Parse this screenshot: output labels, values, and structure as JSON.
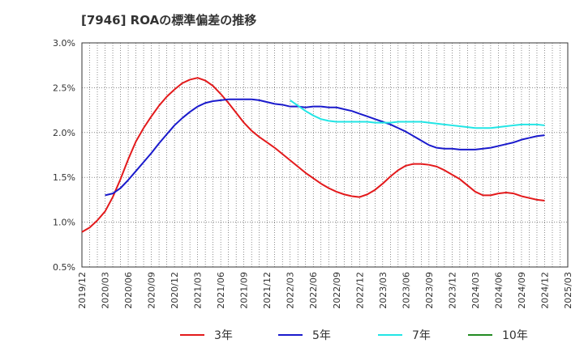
{
  "title": "[7946]  ROAの標準偏差の推移",
  "chart_data": {
    "type": "line",
    "title": "[7946]  ROAの標準偏差の推移",
    "xlabel": "",
    "ylabel": "",
    "ylim": [
      0.5,
      3.0
    ],
    "y_ticks": [
      "0.5%",
      "1.0%",
      "1.5%",
      "2.0%",
      "2.5%",
      "3.0%"
    ],
    "x_ticks": [
      "2019/12",
      "2020/03",
      "2020/06",
      "2020/09",
      "2020/12",
      "2021/03",
      "2021/06",
      "2021/09",
      "2021/12",
      "2022/03",
      "2022/06",
      "2022/09",
      "2022/12",
      "2023/03",
      "2023/06",
      "2023/09",
      "2023/12",
      "2024/03",
      "2024/06",
      "2024/09",
      "2024/12",
      "2025/03"
    ],
    "grid": true,
    "legend_position": "bottom",
    "series": [
      {
        "name": "3年",
        "color": "#e31a1c",
        "points": [
          [
            "2019/12",
            0.89
          ],
          [
            "2020/01",
            0.94
          ],
          [
            "2020/02",
            1.02
          ],
          [
            "2020/03",
            1.12
          ],
          [
            "2020/04",
            1.28
          ],
          [
            "2020/05",
            1.48
          ],
          [
            "2020/06",
            1.7
          ],
          [
            "2020/07",
            1.9
          ],
          [
            "2020/08",
            2.05
          ],
          [
            "2020/09",
            2.18
          ],
          [
            "2020/10",
            2.3
          ],
          [
            "2020/11",
            2.4
          ],
          [
            "2020/12",
            2.48
          ],
          [
            "2021/01",
            2.55
          ],
          [
            "2021/02",
            2.59
          ],
          [
            "2021/03",
            2.61
          ],
          [
            "2021/04",
            2.58
          ],
          [
            "2021/05",
            2.52
          ],
          [
            "2021/06",
            2.43
          ],
          [
            "2021/07",
            2.33
          ],
          [
            "2021/08",
            2.22
          ],
          [
            "2021/09",
            2.11
          ],
          [
            "2021/10",
            2.02
          ],
          [
            "2021/11",
            1.95
          ],
          [
            "2021/12",
            1.89
          ],
          [
            "2022/01",
            1.83
          ],
          [
            "2022/02",
            1.76
          ],
          [
            "2022/03",
            1.69
          ],
          [
            "2022/04",
            1.62
          ],
          [
            "2022/05",
            1.55
          ],
          [
            "2022/06",
            1.49
          ],
          [
            "2022/07",
            1.43
          ],
          [
            "2022/08",
            1.38
          ],
          [
            "2022/09",
            1.34
          ],
          [
            "2022/10",
            1.31
          ],
          [
            "2022/11",
            1.29
          ],
          [
            "2022/12",
            1.28
          ],
          [
            "2023/01",
            1.31
          ],
          [
            "2023/02",
            1.36
          ],
          [
            "2023/03",
            1.43
          ],
          [
            "2023/04",
            1.51
          ],
          [
            "2023/05",
            1.58
          ],
          [
            "2023/06",
            1.63
          ],
          [
            "2023/07",
            1.65
          ],
          [
            "2023/08",
            1.65
          ],
          [
            "2023/09",
            1.64
          ],
          [
            "2023/10",
            1.62
          ],
          [
            "2023/11",
            1.58
          ],
          [
            "2023/12",
            1.53
          ],
          [
            "2024/01",
            1.48
          ],
          [
            "2024/02",
            1.41
          ],
          [
            "2024/03",
            1.34
          ],
          [
            "2024/04",
            1.3
          ],
          [
            "2024/05",
            1.3
          ],
          [
            "2024/06",
            1.32
          ],
          [
            "2024/07",
            1.33
          ],
          [
            "2024/08",
            1.32
          ],
          [
            "2024/09",
            1.29
          ],
          [
            "2024/10",
            1.27
          ],
          [
            "2024/11",
            1.25
          ],
          [
            "2024/12",
            1.24
          ]
        ]
      },
      {
        "name": "5年",
        "color": "#1a1acc",
        "points": [
          [
            "2020/03",
            1.3
          ],
          [
            "2020/04",
            1.32
          ],
          [
            "2020/05",
            1.38
          ],
          [
            "2020/06",
            1.47
          ],
          [
            "2020/07",
            1.57
          ],
          [
            "2020/08",
            1.67
          ],
          [
            "2020/09",
            1.77
          ],
          [
            "2020/10",
            1.88
          ],
          [
            "2020/11",
            1.98
          ],
          [
            "2020/12",
            2.08
          ],
          [
            "2021/01",
            2.16
          ],
          [
            "2021/02",
            2.23
          ],
          [
            "2021/03",
            2.29
          ],
          [
            "2021/04",
            2.33
          ],
          [
            "2021/05",
            2.35
          ],
          [
            "2021/06",
            2.36
          ],
          [
            "2021/07",
            2.37
          ],
          [
            "2021/08",
            2.37
          ],
          [
            "2021/09",
            2.37
          ],
          [
            "2021/10",
            2.37
          ],
          [
            "2021/11",
            2.36
          ],
          [
            "2021/12",
            2.34
          ],
          [
            "2022/01",
            2.32
          ],
          [
            "2022/02",
            2.31
          ],
          [
            "2022/03",
            2.29
          ],
          [
            "2022/04",
            2.29
          ],
          [
            "2022/05",
            2.28
          ],
          [
            "2022/06",
            2.29
          ],
          [
            "2022/07",
            2.29
          ],
          [
            "2022/08",
            2.28
          ],
          [
            "2022/09",
            2.28
          ],
          [
            "2022/10",
            2.26
          ],
          [
            "2022/11",
            2.24
          ],
          [
            "2022/12",
            2.21
          ],
          [
            "2023/01",
            2.18
          ],
          [
            "2023/02",
            2.15
          ],
          [
            "2023/03",
            2.12
          ],
          [
            "2023/04",
            2.09
          ],
          [
            "2023/05",
            2.05
          ],
          [
            "2023/06",
            2.01
          ],
          [
            "2023/07",
            1.96
          ],
          [
            "2023/08",
            1.91
          ],
          [
            "2023/09",
            1.86
          ],
          [
            "2023/10",
            1.83
          ],
          [
            "2023/11",
            1.82
          ],
          [
            "2023/12",
            1.82
          ],
          [
            "2024/01",
            1.81
          ],
          [
            "2024/02",
            1.81
          ],
          [
            "2024/03",
            1.81
          ],
          [
            "2024/04",
            1.82
          ],
          [
            "2024/05",
            1.83
          ],
          [
            "2024/06",
            1.85
          ],
          [
            "2024/07",
            1.87
          ],
          [
            "2024/08",
            1.89
          ],
          [
            "2024/09",
            1.92
          ],
          [
            "2024/10",
            1.94
          ],
          [
            "2024/11",
            1.96
          ],
          [
            "2024/12",
            1.97
          ]
        ]
      },
      {
        "name": "7年",
        "color": "#22e5e5",
        "points": [
          [
            "2022/03",
            2.36
          ],
          [
            "2022/04",
            2.3
          ],
          [
            "2022/05",
            2.24
          ],
          [
            "2022/06",
            2.19
          ],
          [
            "2022/07",
            2.15
          ],
          [
            "2022/08",
            2.13
          ],
          [
            "2022/09",
            2.12
          ],
          [
            "2022/10",
            2.12
          ],
          [
            "2022/11",
            2.12
          ],
          [
            "2022/12",
            2.12
          ],
          [
            "2023/01",
            2.12
          ],
          [
            "2023/02",
            2.11
          ],
          [
            "2023/03",
            2.11
          ],
          [
            "2023/04",
            2.11
          ],
          [
            "2023/05",
            2.12
          ],
          [
            "2023/06",
            2.12
          ],
          [
            "2023/07",
            2.12
          ],
          [
            "2023/08",
            2.12
          ],
          [
            "2023/09",
            2.11
          ],
          [
            "2023/10",
            2.1
          ],
          [
            "2023/11",
            2.09
          ],
          [
            "2023/12",
            2.08
          ],
          [
            "2024/01",
            2.07
          ],
          [
            "2024/02",
            2.06
          ],
          [
            "2024/03",
            2.05
          ],
          [
            "2024/04",
            2.05
          ],
          [
            "2024/05",
            2.05
          ],
          [
            "2024/06",
            2.06
          ],
          [
            "2024/07",
            2.07
          ],
          [
            "2024/08",
            2.08
          ],
          [
            "2024/09",
            2.09
          ],
          [
            "2024/10",
            2.09
          ],
          [
            "2024/11",
            2.09
          ],
          [
            "2024/12",
            2.08
          ]
        ]
      },
      {
        "name": "10年",
        "color": "#228b22",
        "points": []
      }
    ]
  }
}
